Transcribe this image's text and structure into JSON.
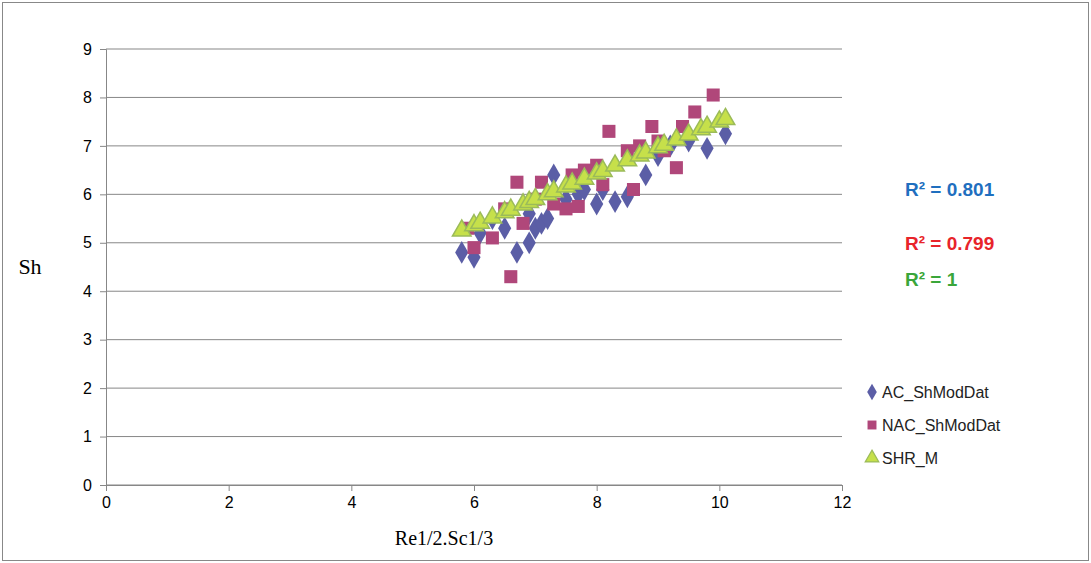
{
  "chart_data": {
    "type": "scatter",
    "x_label": "Re1/2.Sc1/3",
    "y_label": "Sh",
    "xlim": [
      0,
      12
    ],
    "xticks": [
      0,
      2,
      4,
      6,
      8,
      10,
      12
    ],
    "ylim": [
      0,
      9
    ],
    "yticks": [
      0,
      1,
      2,
      3,
      4,
      5,
      6,
      7,
      8,
      9
    ],
    "grid": true,
    "legend": "right",
    "series": [
      {
        "name": "AC_ShModDat",
        "color": "#5b5ea6",
        "marker": "diamond",
        "x": [
          5.8,
          6.0,
          6.1,
          6.3,
          6.5,
          6.7,
          6.9,
          6.9,
          7.0,
          7.1,
          7.2,
          7.3,
          7.5,
          7.7,
          7.8,
          8.0,
          8.1,
          8.3,
          8.5,
          8.8,
          9.0,
          9.2,
          9.5,
          9.8,
          10.1
        ],
        "values": [
          4.8,
          4.7,
          5.2,
          5.5,
          5.3,
          4.8,
          5.0,
          5.6,
          5.3,
          5.4,
          5.5,
          6.4,
          5.9,
          6.0,
          6.1,
          5.8,
          6.1,
          5.85,
          5.95,
          6.4,
          6.8,
          7.0,
          7.1,
          6.95,
          7.25
        ]
      },
      {
        "name": "NAC_ShModDat",
        "color": "#b0477a",
        "marker": "square",
        "x": [
          5.9,
          6.0,
          6.3,
          6.5,
          6.6,
          6.7,
          6.8,
          7.0,
          7.1,
          7.3,
          7.5,
          7.6,
          7.7,
          7.8,
          8.0,
          8.1,
          8.2,
          8.5,
          8.6,
          8.7,
          8.9,
          9.0,
          9.1,
          9.3,
          9.4,
          9.6,
          9.9
        ],
        "values": [
          5.3,
          4.9,
          5.1,
          5.7,
          4.3,
          6.25,
          5.4,
          5.9,
          6.25,
          5.8,
          5.7,
          6.4,
          5.75,
          6.5,
          6.6,
          6.2,
          7.3,
          6.9,
          6.1,
          7.0,
          7.4,
          7.1,
          6.9,
          6.55,
          7.4,
          7.7,
          8.05
        ]
      },
      {
        "name": "SHR_M",
        "color": "#9bbb59",
        "marker": "triangle",
        "x": [
          5.8,
          6.0,
          6.1,
          6.3,
          6.5,
          6.6,
          6.8,
          6.9,
          7.0,
          7.2,
          7.3,
          7.5,
          7.6,
          7.8,
          8.0,
          8.1,
          8.3,
          8.5,
          8.7,
          8.8,
          9.0,
          9.1,
          9.3,
          9.5,
          9.7,
          9.8,
          10.0,
          10.1
        ],
        "values": [
          5.25,
          5.36,
          5.41,
          5.52,
          5.63,
          5.68,
          5.79,
          5.84,
          5.9,
          6.0,
          6.06,
          6.16,
          6.22,
          6.32,
          6.43,
          6.48,
          6.59,
          6.7,
          6.8,
          6.86,
          6.97,
          7.02,
          7.13,
          7.23,
          7.34,
          7.39,
          7.5,
          7.55
        ]
      }
    ],
    "annotations": [
      {
        "text": "R² = 0.801",
        "color": "#1f6fbf"
      },
      {
        "text": "R² = 0.799",
        "color": "#e8242a"
      },
      {
        "text": "R² = 1",
        "color": "#3aa63a"
      }
    ]
  }
}
